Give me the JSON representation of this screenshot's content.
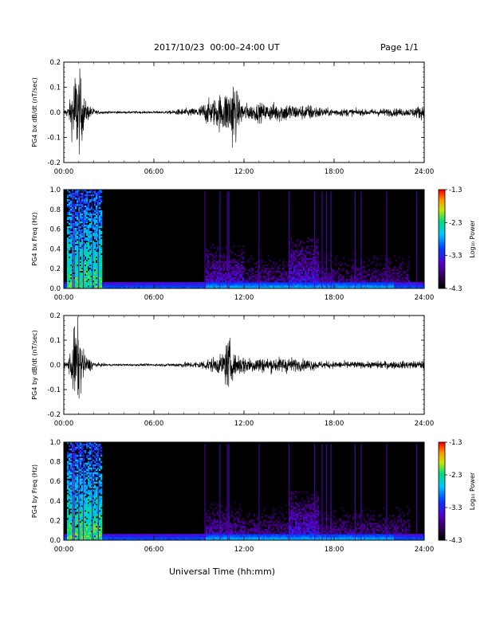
{
  "header": {
    "title": "2017/10/23  00:00–24:00 UT",
    "page": "Page 1/1"
  },
  "xlabel": "Universal Time (hh:mm)",
  "colors": {
    "line": "#000000",
    "spec_bg": "#000000"
  },
  "chart_data": [
    {
      "type": "line",
      "ylabel": "PG4 bx dB/dt (nT/sec)",
      "ylim": [
        -0.2,
        0.2
      ],
      "yticks": [
        "0.2",
        "0.1",
        "0.0",
        "-0.1",
        "-0.2"
      ],
      "xticks": [
        "00:00",
        "06:00",
        "12:00",
        "18:00",
        "24:00"
      ],
      "xlim_hours": [
        0,
        24
      ],
      "envelope": {
        "x_hours": [
          0,
          0.3,
          0.5,
          0.7,
          0.9,
          1.1,
          1.4,
          1.8,
          2.2,
          3.0,
          4.0,
          5.0,
          6.0,
          7.0,
          8.0,
          8.5,
          9.0,
          9.5,
          10.0,
          10.5,
          11.0,
          11.3,
          11.6,
          12.0,
          12.5,
          13.0,
          13.5,
          14.0,
          14.5,
          15.0,
          15.5,
          16.0,
          16.5,
          17.0,
          17.5,
          18.0,
          19.0,
          20.0,
          21.0,
          22.0,
          23.0,
          23.5,
          24.0
        ],
        "amplitude": [
          0.015,
          0.03,
          0.1,
          0.22,
          0.22,
          0.2,
          0.06,
          0.03,
          0.01,
          0.006,
          0.006,
          0.006,
          0.006,
          0.008,
          0.02,
          0.02,
          0.03,
          0.06,
          0.07,
          0.1,
          0.12,
          0.2,
          0.08,
          0.05,
          0.04,
          0.05,
          0.04,
          0.05,
          0.05,
          0.05,
          0.035,
          0.04,
          0.04,
          0.03,
          0.02,
          0.02,
          0.02,
          0.015,
          0.02,
          0.02,
          0.02,
          0.03,
          0.04
        ]
      }
    },
    {
      "type": "heatmap",
      "ylabel": "PG4 bx Freq (Hz)",
      "ylim": [
        0.0,
        1.0
      ],
      "yticks": [
        "1.0",
        "0.8",
        "0.6",
        "0.4",
        "0.2",
        "0.0"
      ],
      "xticks": [
        "00:00",
        "06:00",
        "12:00",
        "18:00",
        "24:00"
      ],
      "colorbar": {
        "label": "Log₁₀ Power",
        "ticks": [
          "-1.3",
          "-2.3",
          "-3.3",
          "-4.3"
        ],
        "range": [
          -4.3,
          -1.3
        ]
      },
      "vertical_streaks_hours": [
        0.6,
        0.7,
        1.0,
        1.3,
        1.9,
        2.3,
        9.4,
        10.4,
        10.9,
        11.0,
        13.0,
        15.0,
        16.7,
        17.2,
        17.5,
        17.8,
        19.4,
        19.8,
        21.5,
        23.5
      ],
      "activity_regions": [
        {
          "x_hours": [
            0.2,
            2.5
          ],
          "f_max": 1.0,
          "power": -2.2
        },
        {
          "x_hours": [
            9.5,
            12.0
          ],
          "f_max": 0.45,
          "power": -3.4
        },
        {
          "x_hours": [
            12.0,
            23.0
          ],
          "f_max": 0.45,
          "power": -3.7
        },
        {
          "x_hours": [
            15.0,
            17.0
          ],
          "f_max": 0.52,
          "power": -3.3
        }
      ]
    },
    {
      "type": "line",
      "ylabel": "PG4 by dB/dt (nT/sec)",
      "ylim": [
        -0.2,
        0.2
      ],
      "yticks": [
        "0.2",
        "0.1",
        "0.0",
        "-0.1",
        "-0.2"
      ],
      "xticks": [
        "00:00",
        "06:00",
        "12:00",
        "18:00",
        "24:00"
      ],
      "xlim_hours": [
        0,
        24
      ],
      "envelope": {
        "x_hours": [
          0,
          0.3,
          0.5,
          0.7,
          0.9,
          1.1,
          1.4,
          1.8,
          2.2,
          3.0,
          4.0,
          5.0,
          6.0,
          7.0,
          8.0,
          8.5,
          9.0,
          9.5,
          10.0,
          10.5,
          11.0,
          11.3,
          11.6,
          12.0,
          12.5,
          13.0,
          13.5,
          14.0,
          14.5,
          15.0,
          15.5,
          16.0,
          16.5,
          17.0,
          17.5,
          18.0,
          19.0,
          20.0,
          21.0,
          22.0,
          23.0,
          23.5,
          24.0
        ],
        "amplitude": [
          0.015,
          0.03,
          0.1,
          0.2,
          0.22,
          0.16,
          0.05,
          0.03,
          0.01,
          0.006,
          0.006,
          0.006,
          0.006,
          0.008,
          0.015,
          0.015,
          0.02,
          0.03,
          0.04,
          0.05,
          0.15,
          0.05,
          0.06,
          0.05,
          0.04,
          0.045,
          0.035,
          0.04,
          0.04,
          0.045,
          0.03,
          0.03,
          0.03,
          0.02,
          0.02,
          0.018,
          0.02,
          0.015,
          0.02,
          0.02,
          0.02,
          0.02,
          0.025
        ]
      }
    },
    {
      "type": "heatmap",
      "ylabel": "PG4 by Freq (Hz)",
      "ylim": [
        0.0,
        1.0
      ],
      "yticks": [
        "1.0",
        "0.8",
        "0.6",
        "0.4",
        "0.2",
        "0.0"
      ],
      "xticks": [
        "00:00",
        "06:00",
        "12:00",
        "18:00",
        "24:00"
      ],
      "colorbar": {
        "label": "Log₁₀ Power",
        "ticks": [
          "-1.3",
          "-2.3",
          "-3.3",
          "-4.3"
        ],
        "range": [
          -4.3,
          -1.3
        ]
      },
      "vertical_streaks_hours": [
        0.6,
        0.7,
        1.0,
        1.3,
        1.9,
        2.3,
        9.4,
        10.4,
        10.9,
        11.0,
        13.0,
        15.0,
        16.7,
        17.2,
        17.5,
        17.8,
        19.4,
        19.8,
        21.5,
        23.5
      ],
      "activity_regions": [
        {
          "x_hours": [
            0.2,
            2.5
          ],
          "f_max": 1.0,
          "power": -2.2
        },
        {
          "x_hours": [
            9.5,
            12.0
          ],
          "f_max": 0.4,
          "power": -3.5
        },
        {
          "x_hours": [
            12.0,
            23.0
          ],
          "f_max": 0.45,
          "power": -3.7
        },
        {
          "x_hours": [
            15.0,
            17.0
          ],
          "f_max": 0.5,
          "power": -3.3
        }
      ]
    }
  ]
}
